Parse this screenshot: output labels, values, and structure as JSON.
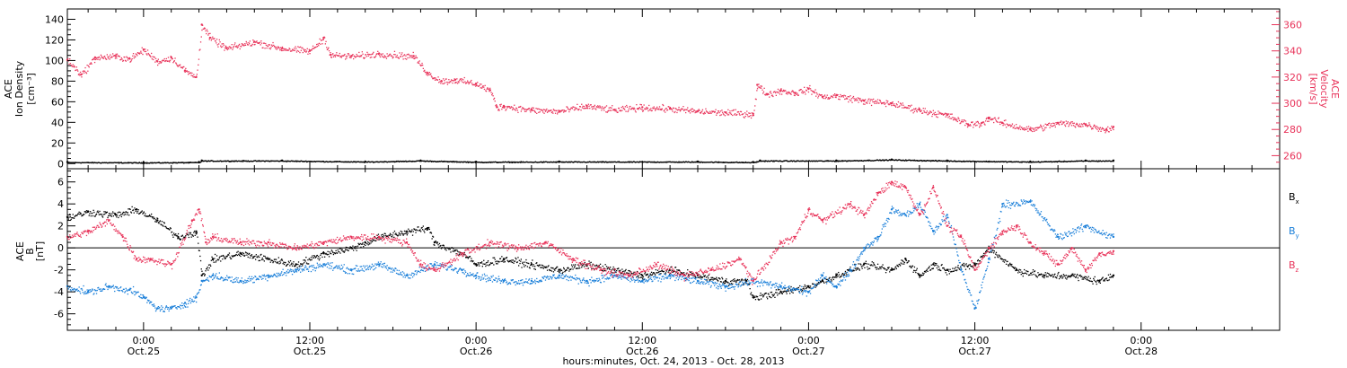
{
  "x_axis": {
    "title": "hours:minutes, Oct. 24, 2013 - Oct. 28, 2013",
    "range_hours": [
      -5.5,
      82
    ],
    "ticks": [
      {
        "hours": 0,
        "line1": "0:00",
        "line2": "Oct.25"
      },
      {
        "hours": 12,
        "line1": "12:00",
        "line2": "Oct.25"
      },
      {
        "hours": 24,
        "line1": "0:00",
        "line2": "Oct.26"
      },
      {
        "hours": 36,
        "line1": "12:00",
        "line2": "Oct.26"
      },
      {
        "hours": 48,
        "line1": "0:00",
        "line2": "Oct.27"
      },
      {
        "hours": 60,
        "line1": "12:00",
        "line2": "Oct.27"
      },
      {
        "hours": 72,
        "line1": "0:00",
        "line2": "Oct.28"
      }
    ]
  },
  "colors": {
    "black": "#000000",
    "pink": "#e8335a",
    "blue": "#1a7fd9"
  },
  "chart_data": [
    {
      "type": "scatter",
      "left_ylabel": [
        "ACE",
        "Ion Density",
        "[cm⁻³]"
      ],
      "right_ylabel": [
        "ACE",
        "Velocity",
        "[km/s]"
      ],
      "left_ylim": [
        -5,
        150
      ],
      "left_ticks": [
        0,
        20,
        40,
        60,
        80,
        100,
        120,
        140
      ],
      "right_ylim": [
        250,
        372
      ],
      "right_ticks": [
        260,
        280,
        300,
        320,
        340,
        360
      ],
      "series": [
        {
          "axis": "left",
          "color": "black",
          "x": [
            -5.5,
            0,
            4,
            4.2,
            10,
            16,
            20,
            24,
            30,
            40,
            44,
            44.5,
            50,
            54,
            58,
            64,
            68,
            70
          ],
          "values": [
            1.5,
            1.2,
            1.5,
            3,
            3,
            2,
            3,
            1.8,
            2,
            2,
            1.5,
            3,
            3,
            4,
            3,
            2,
            3,
            3
          ]
        },
        {
          "axis": "right",
          "color": "pink",
          "x": [
            -5.5,
            -4.5,
            -3.5,
            -2,
            -1,
            0,
            1,
            2,
            3,
            3.8,
            4.2,
            4.8,
            6,
            8,
            10,
            12,
            13,
            13.5,
            15,
            17,
            19.5,
            20.5,
            21.5,
            22.5,
            24,
            25,
            25.5,
            26,
            28,
            30,
            32,
            34,
            36,
            38,
            40,
            42,
            44,
            44.3,
            45,
            46,
            47,
            48,
            49,
            50,
            52,
            54,
            56,
            58,
            59.5,
            60.5,
            61,
            62,
            64,
            66,
            68,
            69.5,
            70
          ],
          "values": [
            333,
            322,
            335,
            336,
            334,
            341,
            332,
            335,
            325,
            320,
            360,
            350,
            342,
            347,
            342,
            340,
            350,
            337,
            336,
            338,
            336,
            323,
            317,
            318,
            315,
            310,
            297,
            298,
            295,
            294,
            298,
            295,
            297,
            296,
            294,
            293,
            292,
            314,
            307,
            310,
            308,
            311,
            305,
            306,
            302,
            300,
            295,
            291,
            284,
            285,
            289,
            285,
            280,
            285,
            284,
            280,
            282
          ]
        }
      ]
    },
    {
      "type": "scatter",
      "left_ylabel": [
        "ACE",
        "B",
        "[nT]"
      ],
      "ylim": [
        -7.5,
        7.2
      ],
      "ticks": [
        -6,
        -4,
        -2,
        0,
        2,
        4,
        6
      ],
      "zero_line": true,
      "legend": [
        "B",
        "B",
        "B"
      ],
      "legend_subscripts": [
        "x",
        "y",
        "z"
      ],
      "legend_position": "right",
      "series": [
        {
          "name_index": 0,
          "color": "black",
          "x": [
            -5.5,
            -4,
            -2,
            -0.5,
            1,
            2.5,
            3.8,
            4.2,
            5,
            7,
            9,
            11,
            13,
            15,
            16,
            17,
            19,
            20.5,
            21,
            23,
            24,
            26,
            28,
            30,
            32,
            34,
            36,
            38,
            40,
            42,
            43.5,
            44,
            46,
            48,
            49,
            50,
            52,
            54,
            55,
            56,
            57,
            58,
            60,
            61,
            63,
            65,
            67,
            69,
            70
          ],
          "values": [
            2.8,
            3.3,
            3.0,
            3.5,
            2.5,
            1.0,
            1.5,
            -2.5,
            -1.0,
            -0.5,
            -1.0,
            -1.5,
            -0.5,
            0.0,
            0.5,
            1.0,
            1.5,
            1.8,
            0.5,
            -0.5,
            -1.5,
            -1.0,
            -1.5,
            -2.0,
            -1.5,
            -2.0,
            -2.5,
            -2.0,
            -2.5,
            -3.0,
            -3.0,
            -4.5,
            -4.0,
            -3.5,
            -3.0,
            -2.5,
            -1.5,
            -2.0,
            -1.0,
            -2.5,
            -1.5,
            -2.0,
            -1.5,
            0.0,
            -2.0,
            -2.5,
            -2.5,
            -3.0,
            -2.5
          ]
        },
        {
          "name_index": 1,
          "color": "blue",
          "x": [
            -5.5,
            -4,
            -2.5,
            -1,
            0,
            1,
            2,
            3,
            3.8,
            4.2,
            5,
            7,
            9,
            11,
            13,
            15,
            17,
            19,
            21,
            23,
            24,
            26,
            28,
            30,
            32,
            34,
            36,
            38,
            40,
            42,
            44,
            46,
            48,
            49,
            50,
            51,
            52,
            53,
            54,
            55,
            56,
            57,
            58,
            59,
            60,
            61,
            62,
            64,
            66,
            68,
            70
          ],
          "values": [
            -3.5,
            -4.0,
            -3.5,
            -3.8,
            -4.5,
            -5.5,
            -5.5,
            -5.0,
            -4.5,
            -3.0,
            -2.5,
            -3.0,
            -2.5,
            -2.0,
            -1.5,
            -2.0,
            -1.5,
            -2.5,
            -1.5,
            -2.0,
            -2.5,
            -3.0,
            -3.0,
            -2.5,
            -3.0,
            -2.5,
            -3.0,
            -2.5,
            -3.0,
            -3.5,
            -3.0,
            -3.5,
            -4.0,
            -2.5,
            -3.5,
            -2.0,
            0.0,
            1.0,
            3.5,
            3.0,
            4.0,
            1.5,
            3.0,
            -2.0,
            -5.5,
            -1.0,
            4.0,
            4.2,
            1.0,
            2.0,
            1.0
          ]
        },
        {
          "name_index": 2,
          "color": "pink",
          "x": [
            -5.5,
            -4,
            -2.5,
            -1.5,
            -0.5,
            0.5,
            2,
            3.5,
            4,
            4.5,
            5,
            7,
            9,
            11,
            13,
            15,
            17,
            19,
            20,
            21,
            23,
            25,
            27,
            29,
            31,
            33,
            35,
            37,
            39,
            41,
            43,
            44,
            46,
            47,
            48,
            49,
            51,
            52,
            53,
            54,
            55,
            56,
            57,
            58,
            59,
            60,
            61,
            62,
            63,
            64,
            65,
            66,
            67,
            68,
            69,
            70
          ],
          "values": [
            1.0,
            1.5,
            2.5,
            1.0,
            -1.0,
            -1.0,
            -1.5,
            2.5,
            3.5,
            0.5,
            1.0,
            0.5,
            0.5,
            0.0,
            0.5,
            1.0,
            1.0,
            0.5,
            -1.5,
            -2.0,
            -0.5,
            0.5,
            0.0,
            0.5,
            -1.0,
            -2.0,
            -2.5,
            -1.5,
            -2.5,
            -2.0,
            -1.0,
            -3.0,
            0.5,
            1.0,
            3.5,
            2.5,
            4.0,
            3.0,
            5.0,
            6.0,
            5.5,
            3.0,
            5.5,
            2.0,
            1.0,
            -2.0,
            0.0,
            1.5,
            2.0,
            0.5,
            -0.5,
            -1.5,
            0.0,
            -2.0,
            -0.5,
            -0.3
          ]
        }
      ]
    }
  ]
}
